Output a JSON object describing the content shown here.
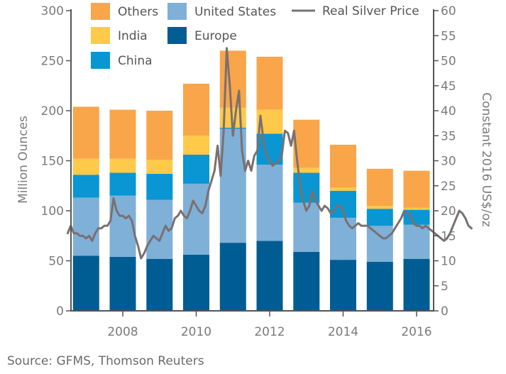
{
  "chart_data": {
    "type": "bar",
    "stacked": true,
    "categories": [
      "2007",
      "2008",
      "2009",
      "2010",
      "2011",
      "2012",
      "2013",
      "2014",
      "2015",
      "2016"
    ],
    "x_tick_labels": [
      "2008",
      "2010",
      "2012",
      "2014",
      "2016"
    ],
    "series": [
      {
        "name": "Europe",
        "color": "#005d93",
        "values": [
          55,
          54,
          52,
          56,
          68,
          70,
          59,
          51,
          49,
          52
        ]
      },
      {
        "name": "United States",
        "color": "#7fb0d8",
        "values": [
          58,
          61,
          59,
          71,
          114,
          76,
          49,
          42,
          36,
          34
        ]
      },
      {
        "name": "China",
        "color": "#0a96d2",
        "values": [
          23,
          23,
          26,
          29,
          1,
          31,
          30,
          27,
          17,
          15
        ]
      },
      {
        "name": "India",
        "color": "#ffc94a",
        "values": [
          16,
          14,
          14,
          19,
          20,
          24,
          5,
          3,
          3,
          2
        ]
      },
      {
        "name": "Others",
        "color": "#f9a54a",
        "values": [
          52,
          49,
          49,
          52,
          57,
          53,
          48,
          43,
          37,
          37
        ]
      }
    ],
    "line_series": {
      "name": "Real Silver Price",
      "color": "#7a7070",
      "axis": "right",
      "x_start": 2006.5,
      "x_step": 0.0833,
      "values": [
        15.5,
        17.0,
        15.5,
        15.5,
        15.0,
        15.0,
        14.5,
        15.0,
        14.0,
        15.5,
        16.5,
        16.5,
        17.0,
        17.0,
        18.0,
        22.5,
        20.0,
        19.0,
        19.0,
        18.5,
        19.0,
        18.0,
        15.0,
        13.0,
        10.5,
        11.5,
        13.0,
        14.0,
        15.0,
        14.5,
        14.0,
        15.5,
        17.0,
        16.0,
        16.5,
        18.5,
        19.0,
        20.0,
        19.0,
        18.5,
        20.0,
        22.0,
        21.0,
        20.0,
        19.5,
        21.0,
        24.0,
        26.0,
        28.0,
        33.0,
        27.0,
        36.0,
        52.5,
        45.0,
        35.0,
        40.0,
        44.0,
        32.0,
        28.0,
        30.0,
        28.0,
        31.0,
        32.0,
        39.0,
        34.0,
        31.0,
        30.0,
        29.0,
        29.5,
        30.0,
        31.0,
        36.0,
        35.5,
        33.0,
        36.0,
        30.0,
        25.0,
        22.0,
        20.0,
        21.0,
        24.0,
        22.0,
        21.0,
        20.0,
        21.0,
        20.5,
        19.5,
        20.0,
        21.0,
        21.0,
        20.0,
        18.0,
        17.0,
        16.5,
        17.0,
        17.5,
        17.0,
        17.0,
        17.0,
        16.5,
        16.0,
        15.5,
        15.0,
        14.5,
        14.5,
        15.0,
        15.5,
        16.5,
        17.5,
        18.5,
        20.0,
        19.5,
        19.0,
        17.5,
        17.0,
        17.0,
        16.5,
        17.0,
        16.5,
        16.0,
        15.5,
        15.0,
        14.5,
        14.0,
        14.5,
        15.5,
        17.0,
        18.5,
        20.0,
        19.5,
        18.5,
        17.0,
        16.5
      ]
    },
    "y_left": {
      "label": "Million Ounces",
      "ylim": [
        0,
        300
      ],
      "ticks": [
        0,
        50,
        100,
        150,
        200,
        250,
        300
      ]
    },
    "y_right": {
      "label": "Constant 2016 US$/oz",
      "ylim": [
        0,
        60
      ],
      "ticks": [
        0,
        5,
        10,
        15,
        20,
        25,
        30,
        35,
        40,
        45,
        50,
        55,
        60
      ]
    },
    "legend": {
      "placement": "top-left",
      "entries": [
        "Others",
        "United States",
        "India",
        "Europe",
        "China",
        "Real Silver Price"
      ]
    },
    "grid": false
  },
  "source": "Source: GFMS, Thomson Reuters"
}
